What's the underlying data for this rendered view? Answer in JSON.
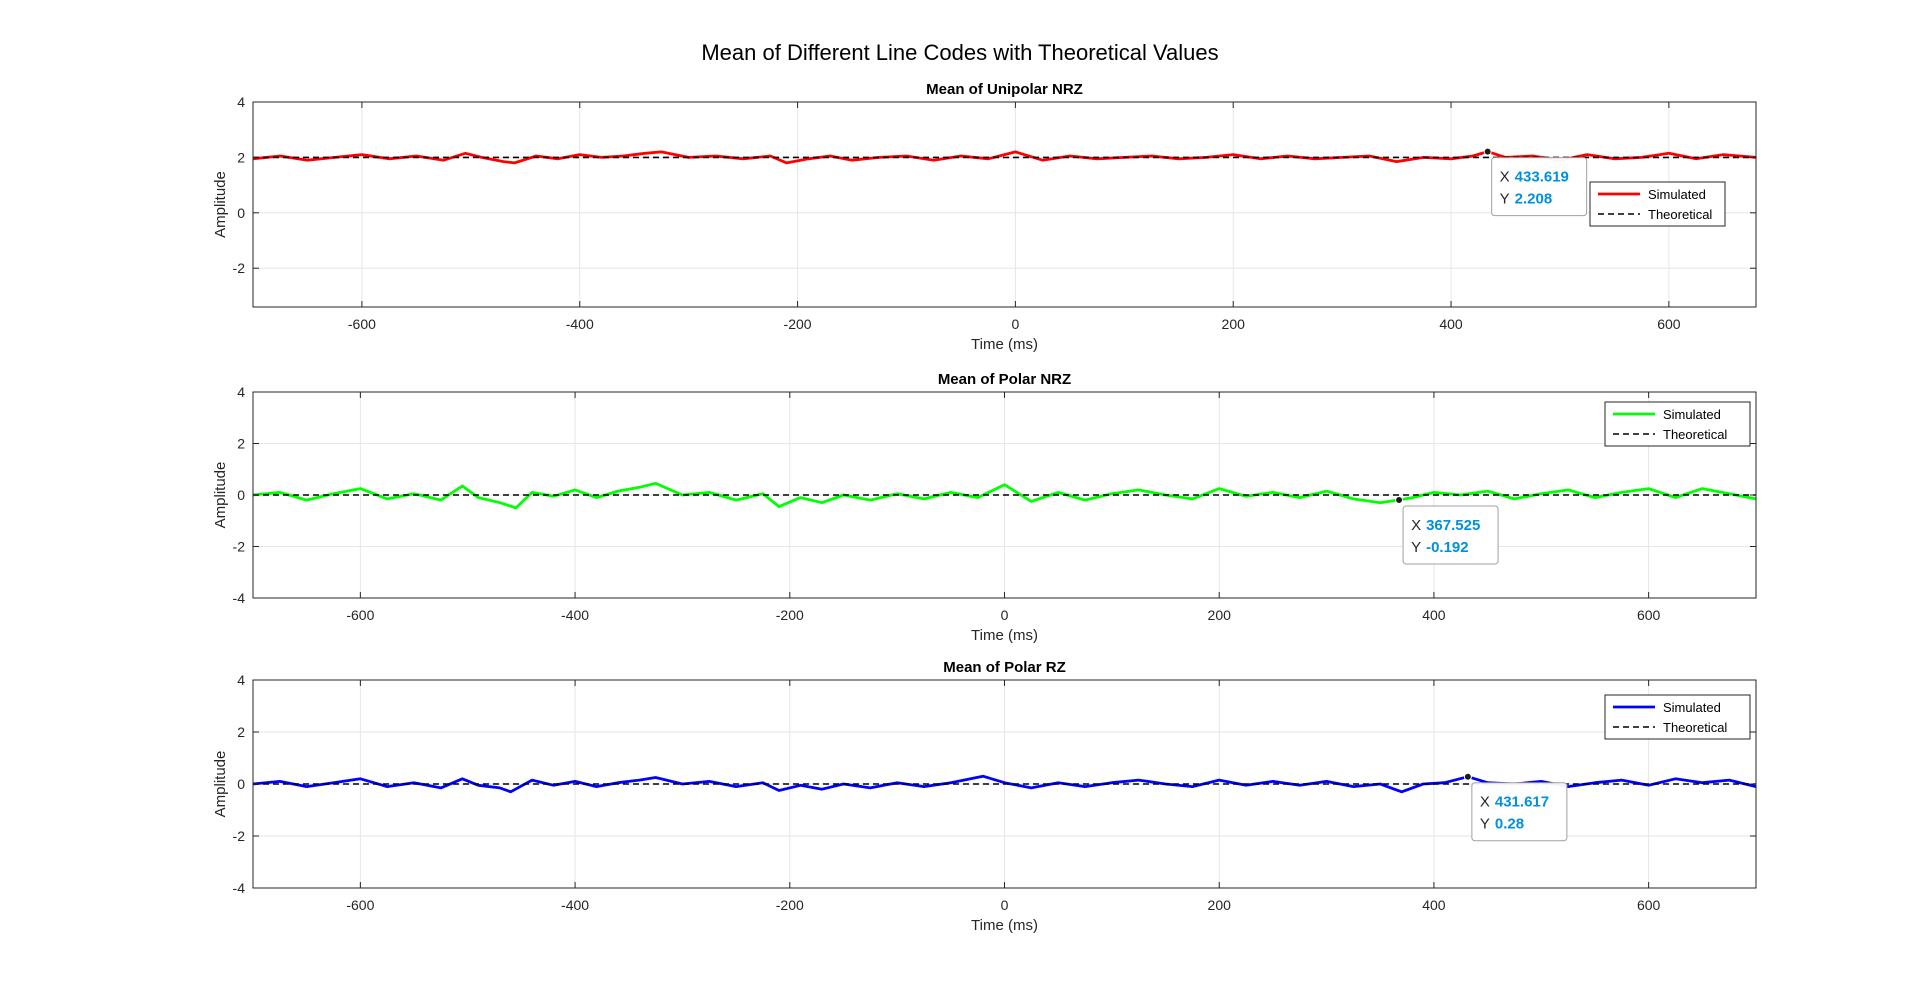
{
  "figure": {
    "title": "Mean of Different Line Codes with Theoretical Values"
  },
  "chart_data": [
    {
      "type": "line",
      "title": "Mean of Unipolar NRZ",
      "xlabel": "Time (ms)",
      "ylabel": "Amplitude",
      "xlim": [
        -700,
        680
      ],
      "ylim": [
        -3.4,
        4
      ],
      "xticks": [
        -600,
        -400,
        -200,
        0,
        200,
        400,
        600
      ],
      "yticks": [
        -2,
        0,
        2,
        4
      ],
      "grid": true,
      "legend_position": "right",
      "series": [
        {
          "name": "Simulated",
          "color": "#ff0000",
          "style": "solid",
          "x": [
            -700,
            -675,
            -650,
            -625,
            -600,
            -575,
            -550,
            -525,
            -505,
            -490,
            -470,
            -460,
            -440,
            -420,
            -400,
            -380,
            -360,
            -340,
            -325,
            -300,
            -275,
            -250,
            -225,
            -210,
            -190,
            -170,
            -150,
            -125,
            -100,
            -75,
            -50,
            -25,
            0,
            25,
            50,
            75,
            100,
            125,
            150,
            175,
            200,
            225,
            250,
            275,
            300,
            325,
            350,
            375,
            400,
            420,
            433.619,
            450,
            475,
            500,
            525,
            550,
            575,
            600,
            625,
            650,
            680
          ],
          "y": [
            1.95,
            2.05,
            1.9,
            2.0,
            2.1,
            1.95,
            2.05,
            1.9,
            2.15,
            2.0,
            1.85,
            1.8,
            2.05,
            1.95,
            2.1,
            2.0,
            2.05,
            2.15,
            2.2,
            2.0,
            2.05,
            1.95,
            2.05,
            1.8,
            1.95,
            2.05,
            1.9,
            2.0,
            2.05,
            1.9,
            2.05,
            1.95,
            2.2,
            1.9,
            2.05,
            1.95,
            2.0,
            2.05,
            1.95,
            2.0,
            2.1,
            1.95,
            2.05,
            1.95,
            2.0,
            2.05,
            1.85,
            2.0,
            1.95,
            2.05,
            2.208,
            2.0,
            2.05,
            1.9,
            2.1,
            1.95,
            2.0,
            2.15,
            1.95,
            2.1,
            2.0
          ]
        },
        {
          "name": "Theoretical",
          "color": "#000000",
          "style": "dashed",
          "x": [
            -700,
            680
          ],
          "y": [
            2,
            2
          ]
        }
      ],
      "datatip": {
        "x_label": "X",
        "x_value": "433.619",
        "y_label": "Y",
        "y_value": "2.208",
        "x": 433.619,
        "y": 2.208
      }
    },
    {
      "type": "line",
      "title": "Mean of Polar NRZ",
      "xlabel": "Time (ms)",
      "ylabel": "Amplitude",
      "xlim": [
        -700,
        700
      ],
      "ylim": [
        -4,
        4
      ],
      "xticks": [
        -600,
        -400,
        -200,
        0,
        200,
        400,
        600
      ],
      "yticks": [
        -4,
        -2,
        0,
        2,
        4
      ],
      "grid": true,
      "legend_position": "top-right",
      "series": [
        {
          "name": "Simulated",
          "color": "#00ff00",
          "style": "solid",
          "x": [
            -700,
            -675,
            -650,
            -625,
            -600,
            -575,
            -550,
            -525,
            -505,
            -490,
            -470,
            -455,
            -440,
            -420,
            -400,
            -380,
            -360,
            -340,
            -325,
            -300,
            -275,
            -250,
            -225,
            -210,
            -190,
            -170,
            -150,
            -125,
            -100,
            -75,
            -50,
            -25,
            0,
            25,
            50,
            75,
            100,
            125,
            150,
            175,
            200,
            225,
            250,
            275,
            300,
            325,
            350,
            367.525,
            380,
            400,
            425,
            450,
            475,
            500,
            525,
            550,
            575,
            600,
            625,
            650,
            675,
            700
          ],
          "y": [
            0.0,
            0.1,
            -0.2,
            0.05,
            0.25,
            -0.15,
            0.05,
            -0.2,
            0.35,
            -0.1,
            -0.3,
            -0.5,
            0.1,
            -0.05,
            0.2,
            -0.1,
            0.15,
            0.3,
            0.45,
            0.0,
            0.1,
            -0.2,
            0.05,
            -0.45,
            -0.1,
            -0.3,
            0.0,
            -0.2,
            0.05,
            -0.15,
            0.1,
            -0.1,
            0.4,
            -0.25,
            0.1,
            -0.2,
            0.05,
            0.2,
            0.0,
            -0.15,
            0.25,
            -0.05,
            0.1,
            -0.1,
            0.15,
            -0.15,
            -0.3,
            -0.192,
            -0.1,
            0.1,
            0.0,
            0.15,
            -0.15,
            0.05,
            0.2,
            -0.1,
            0.1,
            0.25,
            -0.1,
            0.25,
            0.05,
            -0.15
          ]
        },
        {
          "name": "Theoretical",
          "color": "#000000",
          "style": "dashed",
          "x": [
            -700,
            700
          ],
          "y": [
            0,
            0
          ]
        }
      ],
      "datatip": {
        "x_label": "X",
        "x_value": "367.525",
        "y_label": "Y",
        "y_value": "-0.192",
        "x": 367.525,
        "y": -0.192
      }
    },
    {
      "type": "line",
      "title": "Mean of Polar RZ",
      "xlabel": "Time (ms)",
      "ylabel": "Amplitude",
      "xlim": [
        -700,
        700
      ],
      "ylim": [
        -4,
        4
      ],
      "xticks": [
        -600,
        -400,
        -200,
        0,
        200,
        400,
        600
      ],
      "yticks": [
        -4,
        -2,
        0,
        2,
        4
      ],
      "grid": true,
      "legend_position": "top-right",
      "series": [
        {
          "name": "Simulated",
          "color": "#0000ff",
          "style": "solid",
          "x": [
            -700,
            -675,
            -650,
            -625,
            -600,
            -575,
            -550,
            -525,
            -505,
            -490,
            -470,
            -460,
            -440,
            -420,
            -400,
            -380,
            -360,
            -340,
            -325,
            -300,
            -275,
            -250,
            -225,
            -210,
            -190,
            -170,
            -150,
            -125,
            -100,
            -75,
            -50,
            -20,
            0,
            25,
            50,
            75,
            100,
            125,
            150,
            175,
            200,
            225,
            250,
            275,
            300,
            325,
            350,
            370,
            390,
            410,
            431.617,
            450,
            475,
            500,
            525,
            550,
            575,
            600,
            625,
            650,
            675,
            700
          ],
          "y": [
            0.0,
            0.1,
            -0.1,
            0.05,
            0.2,
            -0.1,
            0.05,
            -0.15,
            0.2,
            -0.05,
            -0.15,
            -0.3,
            0.15,
            -0.05,
            0.1,
            -0.1,
            0.05,
            0.15,
            0.25,
            0.0,
            0.1,
            -0.1,
            0.05,
            -0.25,
            -0.05,
            -0.2,
            0.0,
            -0.15,
            0.05,
            -0.1,
            0.05,
            0.3,
            0.05,
            -0.15,
            0.05,
            -0.1,
            0.05,
            0.15,
            0.0,
            -0.1,
            0.15,
            -0.05,
            0.1,
            -0.05,
            0.1,
            -0.1,
            0.0,
            -0.3,
            0.0,
            0.05,
            0.28,
            0.05,
            0.0,
            0.1,
            -0.1,
            0.05,
            0.15,
            -0.05,
            0.2,
            0.05,
            0.15,
            -0.1
          ]
        },
        {
          "name": "Theoretical",
          "color": "#000000",
          "style": "dashed",
          "x": [
            -700,
            700
          ],
          "y": [
            0,
            0
          ]
        }
      ],
      "datatip": {
        "x_label": "X",
        "x_value": "431.617",
        "y_label": "Y",
        "y_value": "0.28",
        "x": 431.617,
        "y": 0.28
      }
    }
  ]
}
